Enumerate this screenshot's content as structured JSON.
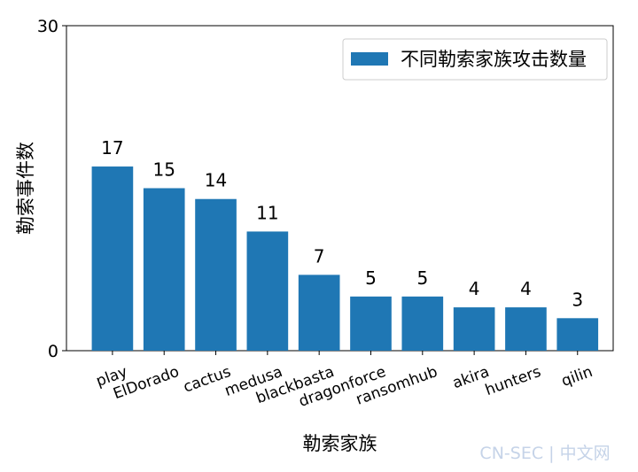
{
  "chart_data": {
    "type": "bar",
    "categories": [
      "play",
      "ElDorado",
      "cactus",
      "medusa",
      "blackbasta",
      "dragonforce",
      "ransomhub",
      "akira",
      "hunters",
      "qilin"
    ],
    "series": [
      {
        "name": "不同勒索家族攻击数量",
        "color": "#1f77b4",
        "values": [
          17,
          15,
          14,
          11,
          7,
          5,
          5,
          4,
          4,
          3
        ]
      }
    ],
    "x_label": "勒索家族",
    "y_label": "勒索事件数",
    "ylim": [
      0,
      30
    ],
    "yticks": [
      0,
      30
    ],
    "legend": "upper right"
  },
  "watermark": "CN-SEC | 中文网"
}
